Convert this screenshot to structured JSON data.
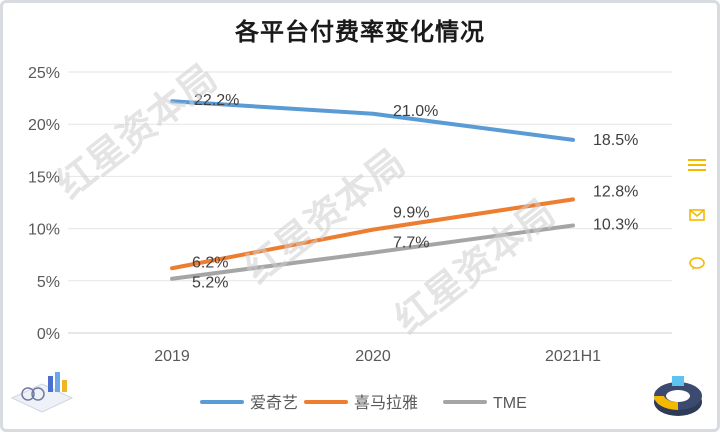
{
  "chart_data": {
    "type": "line",
    "title": "各平台付费率变化情况",
    "categories": [
      "2019",
      "2020",
      "2021H1"
    ],
    "ylim": [
      0,
      25
    ],
    "yticks": [
      "0%",
      "5%",
      "10%",
      "15%",
      "20%",
      "25%"
    ],
    "grid": true,
    "legend_position": "bottom",
    "series": [
      {
        "name": "爱奇艺",
        "values": [
          22.2,
          21.0,
          18.5
        ],
        "labels": [
          "22.2%",
          "21.0%",
          "18.5%"
        ],
        "color": "#5b9bd5"
      },
      {
        "name": "喜马拉雅",
        "values": [
          6.2,
          9.9,
          12.8
        ],
        "labels": [
          "6.2%",
          "9.9%",
          "12.8%"
        ],
        "color": "#ed7d31"
      },
      {
        "name": "TME",
        "values": [
          5.2,
          7.7,
          10.3
        ],
        "labels": [
          "5.2%",
          "7.7%",
          "10.3%"
        ],
        "color": "#a5a5a5"
      }
    ]
  },
  "watermark": {
    "text": "红星资本局"
  },
  "side_tools": {
    "accent_color": "#f5b800",
    "icons": [
      "menu-icon",
      "mail-icon",
      "chat-icon"
    ]
  },
  "colors": {
    "grid": "#e6e6e6",
    "axis": "#cfcfcf",
    "text": "#595959"
  }
}
